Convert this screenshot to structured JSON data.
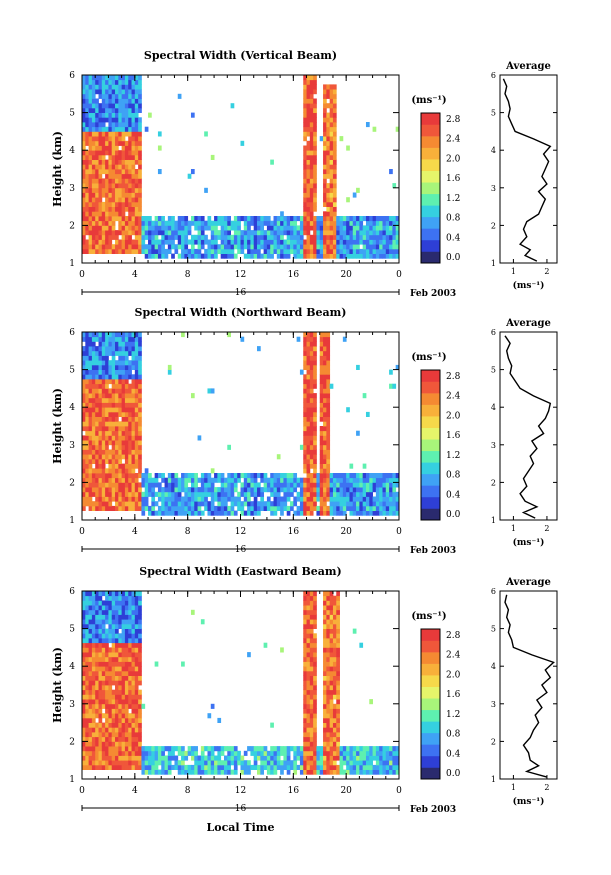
{
  "panels": [
    {
      "title": "Spectral Width (Vertical Beam)",
      "avg_title": "Average",
      "ylabel": "Height (km)",
      "unit": "(ms⁻¹)",
      "date_label": "16",
      "month_label": "Feb 2003",
      "xlabel": "",
      "colorbar_labels": [
        "2.8",
        "2.4",
        "2.0",
        "1.6",
        "1.2",
        "0.8",
        "0.4",
        "0.0"
      ],
      "avg_xticks": [
        "1",
        "2"
      ],
      "avg_xlabel": "(ms⁻¹)"
    },
    {
      "title": "Spectral Width (Northward Beam)",
      "avg_title": "Average",
      "ylabel": "Height (km)",
      "unit": "(ms⁻¹)",
      "date_label": "16",
      "month_label": "Feb 2003",
      "xlabel": "",
      "colorbar_labels": [
        "2.8",
        "2.4",
        "2.0",
        "1.6",
        "1.2",
        "0.8",
        "0.4",
        "0.0"
      ],
      "avg_xticks": [
        "1",
        "2"
      ],
      "avg_xlabel": "(ms⁻¹)"
    },
    {
      "title": "Spectral Width (Eastward Beam)",
      "avg_title": "Average",
      "ylabel": "Height (km)",
      "unit": "(ms⁻¹)",
      "date_label": "16",
      "month_label": "Feb 2003",
      "xlabel": "Local Time",
      "colorbar_labels": [
        "2.8",
        "2.4",
        "2.0",
        "1.6",
        "1.2",
        "0.8",
        "0.4",
        "0.0"
      ],
      "avg_xticks": [
        "1",
        "2"
      ],
      "avg_xlabel": "(ms⁻¹)"
    }
  ],
  "chart_data": [
    {
      "type": "heatmap",
      "title": "Spectral Width (Vertical Beam)",
      "xlabel": "",
      "ylabel": "Height (km)",
      "xlim": [
        0,
        24
      ],
      "ylim": [
        1,
        6
      ],
      "xticks": [
        "0",
        "4",
        "8",
        "12",
        "16",
        "20",
        "0"
      ],
      "yticks": [
        "1",
        "2",
        "3",
        "4",
        "5",
        "6"
      ],
      "colorbar": {
        "label": "(ms⁻¹)",
        "min": 0.0,
        "max": 2.8,
        "ticks": [
          "0.0",
          "0.4",
          "0.8",
          "1.2",
          "1.6",
          "2.0",
          "2.4",
          "2.8"
        ]
      },
      "colors": [
        "#2a2a6e",
        "#2e3fd6",
        "#3d72f2",
        "#3fa2f5",
        "#35d0e0",
        "#5ef0b0",
        "#a8f57a",
        "#e6f56a",
        "#f6d94a",
        "#f8b03a",
        "#f58a32",
        "#f0573a",
        "#e83a3a"
      ],
      "regions": [
        {
          "t": [
            0.1,
            4.5
          ],
          "h": [
            1.2,
            4.5
          ],
          "value": 2.5
        },
        {
          "t": [
            0.1,
            4.5
          ],
          "h": [
            4.5,
            6.0
          ],
          "value": 0.6
        },
        {
          "t": [
            4.5,
            24
          ],
          "h": [
            1.1,
            2.2
          ],
          "value": 0.7
        },
        {
          "t": [
            16.8,
            17.8
          ],
          "h": [
            1.1,
            6.0
          ],
          "value": 2.6
        },
        {
          "t": [
            18.2,
            19.3
          ],
          "h": [
            1.1,
            5.8
          ],
          "value": 2.4
        }
      ],
      "average": {
        "xlim": [
          0.6,
          2.3
        ],
        "xticks": [
          1,
          2
        ],
        "height": [
          1.05,
          1.2,
          1.35,
          1.5,
          1.7,
          1.9,
          2.1,
          2.3,
          2.5,
          2.7,
          2.9,
          3.1,
          3.3,
          3.5,
          3.7,
          3.9,
          4.1,
          4.3,
          4.5,
          4.7,
          4.9,
          5.1,
          5.3,
          5.5,
          5.7,
          5.9
        ],
        "width": [
          1.7,
          1.35,
          1.5,
          1.2,
          1.4,
          1.3,
          1.4,
          1.75,
          1.85,
          1.95,
          1.75,
          2.0,
          1.85,
          1.95,
          2.05,
          1.9,
          2.1,
          1.6,
          1.05,
          0.95,
          0.85,
          0.9,
          0.85,
          0.75,
          0.8,
          0.7
        ]
      }
    },
    {
      "type": "heatmap",
      "title": "Spectral Width (Northward Beam)",
      "xlabel": "",
      "ylabel": "Height (km)",
      "xlim": [
        0,
        24
      ],
      "ylim": [
        1,
        6
      ],
      "xticks": [
        "0",
        "4",
        "8",
        "12",
        "16",
        "20",
        "0"
      ],
      "yticks": [
        "1",
        "2",
        "3",
        "4",
        "5",
        "6"
      ],
      "colorbar": {
        "label": "(ms⁻¹)",
        "min": 0.0,
        "max": 2.8,
        "ticks": [
          "0.0",
          "0.4",
          "0.8",
          "1.2",
          "1.6",
          "2.0",
          "2.4",
          "2.8"
        ]
      },
      "colors": [
        "#2a2a6e",
        "#2e3fd6",
        "#3d72f2",
        "#3fa2f5",
        "#35d0e0",
        "#5ef0b0",
        "#a8f57a",
        "#e6f56a",
        "#f6d94a",
        "#f8b03a",
        "#f58a32",
        "#f0573a",
        "#e83a3a"
      ],
      "regions": [
        {
          "t": [
            0.1,
            4.6
          ],
          "h": [
            1.2,
            4.7
          ],
          "value": 2.5
        },
        {
          "t": [
            0.1,
            4.6
          ],
          "h": [
            4.7,
            6.0
          ],
          "value": 0.6
        },
        {
          "t": [
            4.6,
            24
          ],
          "h": [
            1.1,
            2.3
          ],
          "value": 0.7
        },
        {
          "t": [
            16.8,
            17.7
          ],
          "h": [
            1.1,
            6.0
          ],
          "value": 2.6
        },
        {
          "t": [
            18.0,
            18.8
          ],
          "h": [
            1.1,
            6.0
          ],
          "value": 2.6
        }
      ],
      "average": {
        "xlim": [
          0.6,
          2.3
        ],
        "xticks": [
          1,
          2
        ],
        "height": [
          1.05,
          1.2,
          1.35,
          1.5,
          1.7,
          1.9,
          2.1,
          2.3,
          2.5,
          2.7,
          2.9,
          3.1,
          3.3,
          3.5,
          3.7,
          3.9,
          4.1,
          4.3,
          4.5,
          4.7,
          4.9,
          5.1,
          5.3,
          5.5,
          5.7,
          5.9
        ],
        "width": [
          1.65,
          1.3,
          1.7,
          1.35,
          1.2,
          1.4,
          1.3,
          1.45,
          1.6,
          1.5,
          1.7,
          1.55,
          1.9,
          1.75,
          1.95,
          2.05,
          2.1,
          1.6,
          1.2,
          1.05,
          0.9,
          0.95,
          0.85,
          0.8,
          0.9,
          0.75
        ]
      }
    },
    {
      "type": "heatmap",
      "title": "Spectral Width (Eastward Beam)",
      "xlabel": "Local Time",
      "ylabel": "Height (km)",
      "xlim": [
        0,
        24
      ],
      "ylim": [
        1,
        6
      ],
      "xticks": [
        "0",
        "4",
        "8",
        "12",
        "16",
        "20",
        "0"
      ],
      "yticks": [
        "1",
        "2",
        "3",
        "4",
        "5",
        "6"
      ],
      "colorbar": {
        "label": "(ms⁻¹)",
        "min": 0.0,
        "max": 2.8,
        "ticks": [
          "0.0",
          "0.4",
          "0.8",
          "1.2",
          "1.6",
          "2.0",
          "2.4",
          "2.8"
        ]
      },
      "colors": [
        "#2a2a6e",
        "#2e3fd6",
        "#3d72f2",
        "#3fa2f5",
        "#35d0e0",
        "#5ef0b0",
        "#a8f57a",
        "#e6f56a",
        "#f6d94a",
        "#f8b03a",
        "#f58a32",
        "#f0573a",
        "#e83a3a"
      ],
      "regions": [
        {
          "t": [
            0.1,
            4.5
          ],
          "h": [
            1.2,
            4.6
          ],
          "value": 2.5
        },
        {
          "t": [
            0.1,
            4.5
          ],
          "h": [
            4.6,
            6.0
          ],
          "value": 0.6
        },
        {
          "t": [
            4.5,
            24
          ],
          "h": [
            1.1,
            1.9
          ],
          "value": 0.9
        },
        {
          "t": [
            16.7,
            17.8
          ],
          "h": [
            1.1,
            6.0
          ],
          "value": 2.5
        },
        {
          "t": [
            18.2,
            19.4
          ],
          "h": [
            1.1,
            6.0
          ],
          "value": 2.4
        }
      ],
      "average": {
        "xlim": [
          0.6,
          2.3
        ],
        "xticks": [
          1,
          2
        ],
        "height": [
          1.05,
          1.2,
          1.35,
          1.5,
          1.7,
          1.9,
          2.1,
          2.3,
          2.5,
          2.7,
          2.9,
          3.1,
          3.3,
          3.5,
          3.7,
          3.9,
          4.1,
          4.3,
          4.5,
          4.7,
          4.9,
          5.1,
          5.3,
          5.5,
          5.7,
          5.9
        ],
        "width": [
          2.0,
          1.4,
          1.75,
          1.5,
          1.45,
          1.3,
          1.5,
          1.6,
          1.75,
          1.65,
          1.85,
          1.7,
          2.0,
          1.85,
          2.1,
          1.95,
          2.2,
          1.55,
          1.0,
          0.95,
          0.85,
          0.9,
          0.8,
          0.85,
          0.75,
          0.8
        ]
      }
    }
  ]
}
